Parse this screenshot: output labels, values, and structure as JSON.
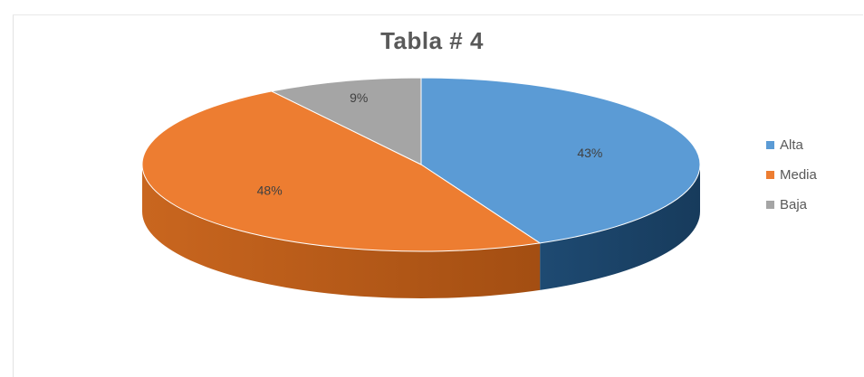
{
  "chart_data": {
    "type": "pie",
    "title": "Tabla # 4",
    "categories": [
      "Alta",
      "Media",
      "Baja"
    ],
    "values": [
      43,
      48,
      9
    ],
    "data_labels": [
      "43%",
      "48%",
      "9%"
    ],
    "colors": [
      "#5b9bd5",
      "#ed7d31",
      "#a5a5a5"
    ],
    "side_colors": [
      "#1f4e79",
      "#b55a1c",
      "#7a7a7a"
    ],
    "style": "3d",
    "legend_position": "right"
  }
}
